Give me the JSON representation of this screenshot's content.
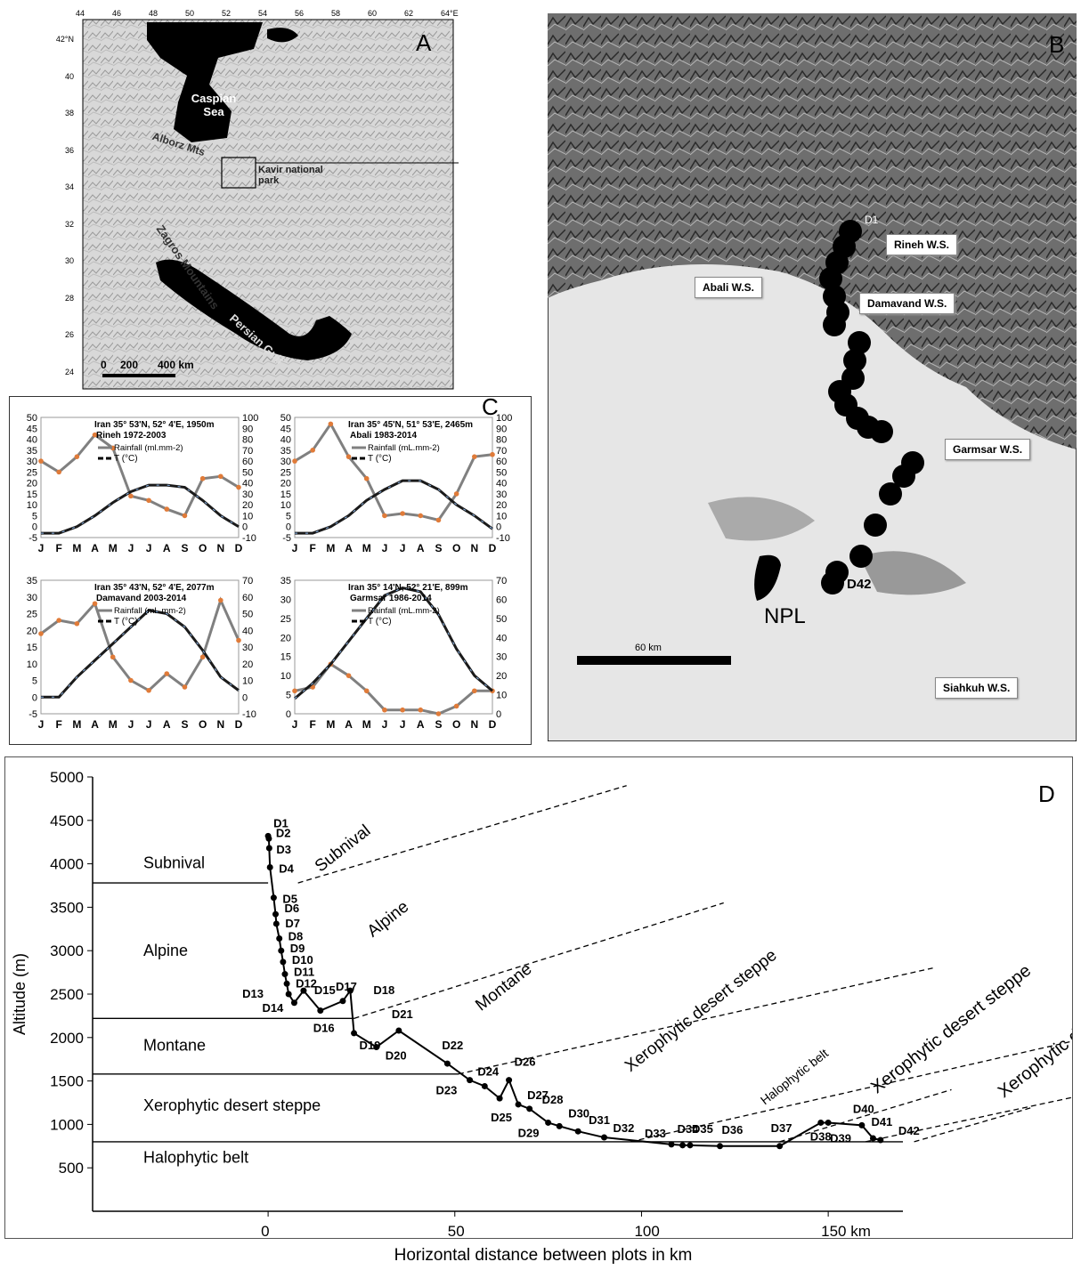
{
  "panelA": {
    "letter": "A",
    "lon_ticks": [
      "44",
      "46",
      "48",
      "50",
      "52",
      "54",
      "56",
      "58",
      "60",
      "62",
      "64°E"
    ],
    "lat_ticks": [
      "42°N",
      "40",
      "38",
      "36",
      "34",
      "32",
      "30",
      "28",
      "26",
      "24"
    ],
    "labels": {
      "caspian": "Caspian Sea",
      "alborz": "Alborz Mts",
      "kavir": "Kavir national park",
      "zagros": "Zagros Mountains",
      "gulf": "Persian Gulf"
    },
    "scale": [
      "0",
      "200",
      "400 km"
    ]
  },
  "panelB": {
    "letter": "B",
    "stations": [
      "Rineh W.S.",
      "Abali W.S.",
      "Damavand W.S.",
      "Garmsar W.S.",
      "Siahkuh W.S."
    ],
    "point_labels": {
      "first": "D1",
      "last": "D42"
    },
    "npl": "NPL",
    "scale": "60 km"
  },
  "panelC": {
    "letter": "C",
    "months": [
      "J",
      "F",
      "M",
      "A",
      "M",
      "J",
      "J",
      "A",
      "S",
      "O",
      "N",
      "D"
    ],
    "rainfall_color": "#808080",
    "temperature_color": "#1a1a1a",
    "marker_rain": "#e07b39",
    "marker_temp": "#8ab4e8",
    "charts": [
      {
        "header": "Iran 35° 53'N, 52° 4'E, 1950m",
        "station": "Rineh  1972-2003",
        "rain_legend": "Rainfall (ml.mm-2)",
        "temp_legend": "T (°C)",
        "left_ticks": [
          "50",
          "45",
          "40",
          "35",
          "30",
          "25",
          "20",
          "15",
          "10",
          "5",
          "0",
          "-5"
        ],
        "right_ticks": [
          "100",
          "90",
          "80",
          "70",
          "60",
          "50",
          "40",
          "30",
          "20",
          "10",
          "0",
          "-10"
        ],
        "left_range": [
          -5,
          50
        ],
        "rain": [
          30,
          25,
          32,
          42,
          36,
          14,
          12,
          8,
          5,
          22,
          23,
          18
        ],
        "temp": [
          -3,
          -3,
          0,
          5,
          11,
          16,
          19,
          19,
          18,
          12,
          5,
          0
        ]
      },
      {
        "header": "Iran 35° 45'N, 51° 53'E, 2465m",
        "station": "Abali  1983-2014",
        "rain_legend": "Rainfall (mL.mm-2)",
        "temp_legend": "T (°C)",
        "left_ticks": [
          "50",
          "45",
          "40",
          "35",
          "30",
          "25",
          "20",
          "15",
          "10",
          "5",
          "0",
          "-5"
        ],
        "right_ticks": [
          "100",
          "90",
          "80",
          "70",
          "60",
          "50",
          "40",
          "30",
          "20",
          "10",
          "0",
          "-10"
        ],
        "left_range": [
          -5,
          50
        ],
        "rain": [
          30,
          35,
          47,
          32,
          22,
          5,
          6,
          5,
          3,
          15,
          32,
          33
        ],
        "temp": [
          -3,
          -3,
          0,
          5,
          12,
          17,
          21,
          21,
          17,
          10,
          5,
          -1
        ]
      },
      {
        "header": "Iran 35° 43'N, 52° 4'E, 2077m",
        "station": "Damavand 2003-2014",
        "rain_legend": "Rainfall (mL.mm-2)",
        "temp_legend": "T (°C)",
        "left_ticks": [
          "35",
          "30",
          "25",
          "20",
          "15",
          "10",
          "5",
          "0",
          "-5"
        ],
        "right_ticks": [
          "70",
          "60",
          "50",
          "40",
          "30",
          "20",
          "10",
          "0",
          "-10"
        ],
        "left_range": [
          -5,
          35
        ],
        "rain": [
          19,
          23,
          22,
          28,
          12,
          5,
          2,
          7,
          3,
          12,
          29,
          17
        ],
        "temp": [
          0,
          0,
          6,
          11,
          16,
          21,
          26,
          25,
          21,
          14,
          6,
          2
        ]
      },
      {
        "header": "Iran 35° 14'N, 52° 21'E, 899m",
        "station": "Garmsar 1986-2014",
        "rain_legend": "Rainfall (mL.mm-2)",
        "temp_legend": "T (°C)",
        "left_ticks": [
          "35",
          "30",
          "25",
          "20",
          "15",
          "10",
          "5",
          "0"
        ],
        "right_ticks": [
          "70",
          "60",
          "50",
          "40",
          "30",
          "20",
          "10",
          "0"
        ],
        "left_range": [
          0,
          35
        ],
        "rain": [
          6,
          7,
          13,
          10,
          6,
          1,
          1,
          1,
          0,
          2,
          6,
          6
        ],
        "temp": [
          4,
          8,
          13,
          19,
          25,
          31,
          33,
          32,
          26,
          17,
          10,
          6
        ]
      }
    ]
  },
  "panelD": {
    "letter": "D",
    "ylabel": "Altitude (m)",
    "xlabel": "Horizontal distance between plots in km",
    "y_ticks": [
      "5000",
      "4500",
      "4000",
      "3500",
      "3000",
      "2500",
      "2000",
      "1500",
      "1000",
      "500"
    ],
    "x_ticks": [
      "0",
      "50",
      "100",
      "150 km"
    ],
    "belts_left": [
      "Subnival",
      "Alpine",
      "Montane",
      "Xerophytic desert steppe",
      "Halophytic belt"
    ],
    "belts_diagonal": [
      "Subnival",
      "Alpine",
      "Montane",
      "Xerophytic desert steppe",
      "Xerophytic desert steppe",
      "Halophytic belt",
      "Xerophytic desert steppe"
    ],
    "chart_data": {
      "type": "line",
      "xlabel": "Horizontal distance between plots in km",
      "ylabel": "Altitude (m)",
      "ylim": [
        0,
        5000
      ],
      "xlim": [
        -47,
        170
      ],
      "boundaries_m": [
        3780,
        2220,
        1580,
        800
      ],
      "points": [
        {
          "label": "D1",
          "x": 0,
          "y": 4320
        },
        {
          "label": "D2",
          "x": 0.2,
          "y": 4290
        },
        {
          "label": "D3",
          "x": 0.3,
          "y": 4180
        },
        {
          "label": "D4",
          "x": 0.5,
          "y": 3960
        },
        {
          "label": "D5",
          "x": 1.5,
          "y": 3610
        },
        {
          "label": "D6",
          "x": 2,
          "y": 3420
        },
        {
          "label": "D7",
          "x": 2.2,
          "y": 3310
        },
        {
          "label": "D8",
          "x": 3,
          "y": 3140
        },
        {
          "label": "D9",
          "x": 3.5,
          "y": 3000
        },
        {
          "label": "D10",
          "x": 4,
          "y": 2870
        },
        {
          "label": "D11",
          "x": 4.5,
          "y": 2730
        },
        {
          "label": "D12",
          "x": 5,
          "y": 2620
        },
        {
          "label": "D13",
          "x": 5.5,
          "y": 2500
        },
        {
          "label": "D14",
          "x": 7,
          "y": 2400
        },
        {
          "label": "D15",
          "x": 9.5,
          "y": 2540
        },
        {
          "label": "D16",
          "x": 14,
          "y": 2310
        },
        {
          "label": "D17",
          "x": 20,
          "y": 2420
        },
        {
          "label": "D18",
          "x": 22,
          "y": 2540
        },
        {
          "label": "D19",
          "x": 23,
          "y": 2050
        },
        {
          "label": "D20",
          "x": 29,
          "y": 1890
        },
        {
          "label": "D21",
          "x": 35,
          "y": 2080
        },
        {
          "label": "D22",
          "x": 48,
          "y": 1700
        },
        {
          "label": "D23",
          "x": 54,
          "y": 1510
        },
        {
          "label": "D24",
          "x": 58,
          "y": 1440
        },
        {
          "label": "D25",
          "x": 62,
          "y": 1300
        },
        {
          "label": "D26",
          "x": 64.5,
          "y": 1510
        },
        {
          "label": "D27",
          "x": 67,
          "y": 1230
        },
        {
          "label": "D28",
          "x": 70,
          "y": 1180
        },
        {
          "label": "D29",
          "x": 75,
          "y": 1020
        },
        {
          "label": "D30",
          "x": 78,
          "y": 980
        },
        {
          "label": "D31",
          "x": 83,
          "y": 920
        },
        {
          "label": "D32",
          "x": 90,
          "y": 850
        },
        {
          "label": "D33",
          "x": 108,
          "y": 770
        },
        {
          "label": "D34",
          "x": 111,
          "y": 760
        },
        {
          "label": "D35",
          "x": 113,
          "y": 760
        },
        {
          "label": "D36",
          "x": 121,
          "y": 750
        },
        {
          "label": "D37",
          "x": 137,
          "y": 750
        },
        {
          "label": "D38",
          "x": 148,
          "y": 1020
        },
        {
          "label": "D39",
          "x": 150,
          "y": 1020
        },
        {
          "label": "D40",
          "x": 159,
          "y": 990
        },
        {
          "label": "D41",
          "x": 162,
          "y": 840
        },
        {
          "label": "D42",
          "x": 164,
          "y": 820
        }
      ]
    }
  }
}
